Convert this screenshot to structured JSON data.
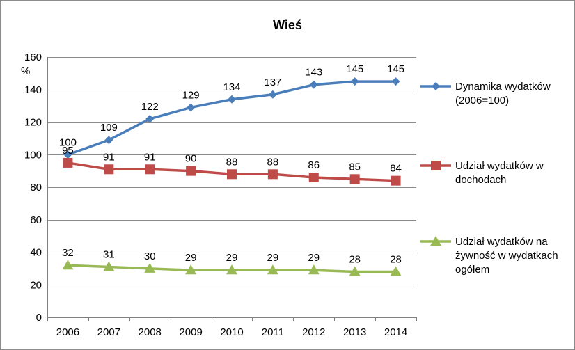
{
  "chart_data": {
    "type": "line",
    "title": "Wieś",
    "ylabel": "%",
    "xlabel": "",
    "categories": [
      "2006",
      "2007",
      "2008",
      "2009",
      "2010",
      "2011",
      "2012",
      "2013",
      "2014"
    ],
    "ylim": [
      0,
      160
    ],
    "yticks": [
      "0",
      "20",
      "40",
      "60",
      "80",
      "100",
      "120",
      "140",
      "160"
    ],
    "grid": true,
    "legend_position": "right",
    "series": [
      {
        "name": "Dynamika wydatków (2006=100)",
        "legend_lines": [
          "Dynamika wydatków",
          "(2006=100)"
        ],
        "color": "#4a7ebb",
        "marker": "diamond",
        "values": [
          100,
          109,
          122,
          129,
          134,
          137,
          143,
          145,
          145
        ],
        "labels": [
          "100",
          "109",
          "122",
          "129",
          "134",
          "137",
          "143",
          "145",
          "145"
        ]
      },
      {
        "name": "Udział wydatków w dochodach",
        "legend_lines": [
          "Udział wydatków w",
          "dochodach"
        ],
        "color": "#be4b48",
        "marker": "square",
        "values": [
          95,
          91,
          91,
          90,
          88,
          88,
          86,
          85,
          84
        ],
        "labels": [
          "95",
          "91",
          "91",
          "90",
          "88",
          "88",
          "86",
          "85",
          "84"
        ]
      },
      {
        "name": "Udział wydatków na żywność w wydatkach ogółem",
        "legend_lines": [
          "Udział wydatków na",
          "żywność w wydatkach",
          "ogółem"
        ],
        "color": "#98b954",
        "marker": "triangle",
        "values": [
          32,
          31,
          30,
          29,
          29,
          29,
          29,
          28,
          28
        ],
        "labels": [
          "32",
          "31",
          "30",
          "29",
          "29",
          "29",
          "29",
          "28",
          "28"
        ]
      }
    ]
  }
}
